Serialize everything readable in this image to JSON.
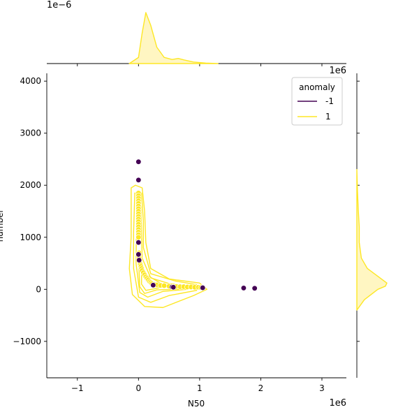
{
  "colors": {
    "anomaly_neg": "#440154",
    "anomaly_pos": "#fde725",
    "kde_fill": "#fff6c2"
  },
  "chart_data": {
    "type": "scatter",
    "title": "",
    "xlabel": "N50",
    "ylabel": "number",
    "x_exponent_label": "1e6",
    "y_exponent_label": "1e6",
    "top_marginal_exponent_label": "1e−6",
    "xlim": [
      -1.5,
      3.4
    ],
    "ylim": [
      -1700,
      4150
    ],
    "xticks": [
      -1,
      0,
      1,
      2,
      3
    ],
    "xtick_labels": [
      "−1",
      "0",
      "1",
      "2",
      "3"
    ],
    "yticks": [
      -1000,
      0,
      1000,
      2000,
      3000,
      4000
    ],
    "ytick_labels": [
      "−1000",
      "0",
      "1000",
      "2000",
      "3000",
      "4000"
    ],
    "grid": false,
    "legend": {
      "title": "anomaly",
      "placement": "top-right",
      "entries": [
        {
          "label": "-1",
          "color": "#440154"
        },
        {
          "label": "1",
          "color": "#fde725"
        }
      ]
    },
    "series": [
      {
        "name": "-1",
        "color": "#440154",
        "points": [
          [
            0.0,
            2450
          ],
          [
            0.0,
            2100
          ],
          [
            0.0,
            900
          ],
          [
            0.0,
            670
          ],
          [
            0.01,
            560
          ],
          [
            0.24,
            80
          ],
          [
            0.55,
            45
          ],
          [
            0.57,
            40
          ],
          [
            1.05,
            30
          ],
          [
            1.72,
            25
          ],
          [
            1.9,
            20
          ]
        ]
      },
      {
        "name": "1",
        "color": "#fde725",
        "points": [
          [
            0.0,
            1850
          ],
          [
            0.0,
            1800
          ],
          [
            0.0,
            1750
          ],
          [
            0.0,
            1700
          ],
          [
            0.0,
            1650
          ],
          [
            0.0,
            1600
          ],
          [
            0.0,
            1550
          ],
          [
            0.0,
            1500
          ],
          [
            0.0,
            1450
          ],
          [
            0.0,
            1400
          ],
          [
            0.0,
            1350
          ],
          [
            0.0,
            1300
          ],
          [
            0.0,
            1250
          ],
          [
            0.0,
            1200
          ],
          [
            0.0,
            1150
          ],
          [
            0.0,
            1100
          ],
          [
            0.0,
            1050
          ],
          [
            0.0,
            1000
          ],
          [
            0.01,
            700
          ],
          [
            0.01,
            600
          ],
          [
            0.02,
            520
          ],
          [
            0.03,
            480
          ],
          [
            0.04,
            440
          ],
          [
            0.05,
            400
          ],
          [
            0.06,
            360
          ],
          [
            0.08,
            320
          ],
          [
            0.1,
            280
          ],
          [
            0.12,
            240
          ],
          [
            0.14,
            210
          ],
          [
            0.16,
            180
          ],
          [
            0.18,
            150
          ],
          [
            0.2,
            130
          ],
          [
            0.22,
            110
          ],
          [
            0.26,
            95
          ],
          [
            0.3,
            85
          ],
          [
            0.36,
            75
          ],
          [
            0.42,
            70
          ],
          [
            0.5,
            60
          ],
          [
            0.62,
            55
          ],
          [
            0.68,
            50
          ],
          [
            0.74,
            50
          ],
          [
            0.8,
            45
          ],
          [
            0.86,
            45
          ],
          [
            0.92,
            40
          ],
          [
            0.98,
            40
          ],
          [
            1.02,
            35
          ]
        ]
      }
    ],
    "marginal_top": {
      "series": [
        {
          "name": "1",
          "x": [
            -0.15,
            0.0,
            0.06,
            0.12,
            0.2,
            0.3,
            0.42,
            0.55,
            0.65,
            0.75,
            0.9,
            1.1,
            1.3
          ],
          "density": [
            0.0,
            0.12,
            0.6,
            1.0,
            0.75,
            0.32,
            0.12,
            0.08,
            0.1,
            0.07,
            0.03,
            0.01,
            0.0
          ]
        }
      ]
    },
    "marginal_right": {
      "series": [
        {
          "name": "1",
          "y": [
            -400,
            -200,
            0,
            60,
            120,
            250,
            400,
            600,
            900,
            1200,
            1500,
            1900,
            2300
          ],
          "density": [
            0.0,
            0.25,
            0.7,
            0.95,
            1.0,
            0.7,
            0.35,
            0.15,
            0.08,
            0.08,
            0.05,
            0.02,
            0.0
          ]
        }
      ]
    }
  }
}
